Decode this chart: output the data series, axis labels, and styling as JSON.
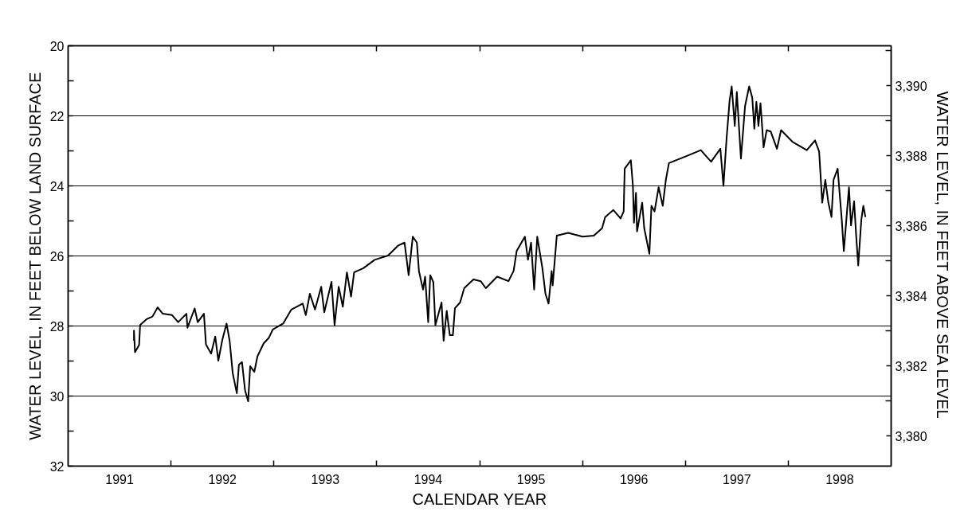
{
  "chart_data": {
    "type": "line",
    "xlabel": "CALENDAR YEAR",
    "ylabel": "WATER LEVEL, IN FEET BELOW LAND SURFACE",
    "y2label": "WATER LEVEL, IN FEET ABOVE SEA LEVEL",
    "xlim": [
      1991,
      1999
    ],
    "xticks": [
      {
        "value": 1991.5,
        "label": "1991"
      },
      {
        "value": 1992,
        "label": null
      },
      {
        "value": 1992.5,
        "label": "1992"
      },
      {
        "value": 1993,
        "label": null
      },
      {
        "value": 1993.5,
        "label": "1993"
      },
      {
        "value": 1994,
        "label": null
      },
      {
        "value": 1994.5,
        "label": "1994"
      },
      {
        "value": 1995,
        "label": null
      },
      {
        "value": 1995.5,
        "label": "1995"
      },
      {
        "value": 1996,
        "label": null
      },
      {
        "value": 1996.5,
        "label": "1996"
      },
      {
        "value": 1997,
        "label": null
      },
      {
        "value": 1997.5,
        "label": "1997"
      },
      {
        "value": 1998,
        "label": null
      },
      {
        "value": 1998.5,
        "label": "1998"
      }
    ],
    "ylim": [
      32,
      20
    ],
    "yticks": [
      20,
      {
        "value": 21,
        "label": null
      },
      22,
      {
        "value": 23,
        "label": null
      },
      24,
      {
        "value": 25,
        "label": null
      },
      26,
      {
        "value": 27,
        "label": null
      },
      28,
      {
        "value": 29,
        "label": null
      },
      30,
      {
        "value": 31,
        "label": null
      },
      32
    ],
    "y2lim": [
      3379.14,
      3391.14
    ],
    "y2ticks": [
      {
        "value": 3380,
        "label": "3,380"
      },
      {
        "value": 3381,
        "label": null
      },
      {
        "value": 3382,
        "label": "3,382"
      },
      {
        "value": 3383,
        "label": null
      },
      {
        "value": 3384,
        "label": "3,384"
      },
      {
        "value": 3385,
        "label": null
      },
      {
        "value": 3386,
        "label": "3,386"
      },
      {
        "value": 3387,
        "label": null
      },
      {
        "value": 3388,
        "label": "3,388"
      },
      {
        "value": 3389,
        "label": null
      },
      {
        "value": 3390,
        "label": "3,390"
      },
      {
        "value": 3391,
        "label": null
      }
    ],
    "grid": "y",
    "line_style": "solid",
    "series": [
      {
        "color": "#000000",
        "x": [
          1991.64,
          1991.64,
          1991.65,
          1991.69,
          1991.7,
          1991.76,
          1991.82,
          1991.87,
          1991.92,
          1992.01,
          1992.07,
          1992.15,
          1992.16,
          1992.23,
          1992.26,
          1992.32,
          1992.34,
          1992.39,
          1992.43,
          1992.46,
          1992.5,
          1992.54,
          1992.57,
          1992.6,
          1992.64,
          1992.66,
          1992.69,
          1992.72,
          1992.75,
          1992.77,
          1992.81,
          1992.84,
          1992.9,
          1992.95,
          1992.99,
          1993.09,
          1993.17,
          1993.28,
          1993.31,
          1993.35,
          1993.4,
          1993.46,
          1993.49,
          1993.56,
          1993.59,
          1993.63,
          1993.67,
          1993.71,
          1993.75,
          1993.78,
          1993.87,
          1993.98,
          1994.11,
          1994.21,
          1994.27,
          1994.31,
          1994.35,
          1994.39,
          1994.41,
          1994.45,
          1994.47,
          1994.5,
          1994.52,
          1994.55,
          1994.57,
          1994.63,
          1994.65,
          1994.68,
          1994.71,
          1994.74,
          1994.76,
          1994.81,
          1994.85,
          1994.94,
          1995.01,
          1995.06,
          1995.17,
          1995.28,
          1995.33,
          1995.36,
          1995.44,
          1995.47,
          1995.5,
          1995.53,
          1995.56,
          1995.61,
          1995.64,
          1995.67,
          1995.7,
          1995.71,
          1995.75,
          1995.86,
          1996.0,
          1996.11,
          1996.19,
          1996.22,
          1996.3,
          1996.37,
          1996.4,
          1996.41,
          1996.47,
          1996.49,
          1996.5,
          1996.52,
          1996.53,
          1996.58,
          1996.6,
          1996.65,
          1996.67,
          1996.7,
          1996.74,
          1996.78,
          1996.81,
          1996.84,
          1997.01,
          1997.15,
          1997.25,
          1997.34,
          1997.37,
          1997.4,
          1997.43,
          1997.45,
          1997.48,
          1997.5,
          1997.54,
          1997.58,
          1997.62,
          1997.65,
          1997.67,
          1997.69,
          1997.71,
          1997.73,
          1997.76,
          1997.79,
          1997.83,
          1997.89,
          1997.93,
          1998.04,
          1998.18,
          1998.26,
          1998.3,
          1998.33,
          1998.36,
          1998.39,
          1998.42,
          1998.44,
          1998.48,
          1998.52,
          1998.54,
          1998.59,
          1998.61,
          1998.64,
          1998.66,
          1998.68,
          1998.71,
          1998.73,
          1998.75
        ],
        "values": [
          28.42,
          28.13,
          28.75,
          28.54,
          27.97,
          27.81,
          27.73,
          27.47,
          27.65,
          27.69,
          27.89,
          27.65,
          28.05,
          27.5,
          27.89,
          27.65,
          28.53,
          28.79,
          28.3,
          28.99,
          28.38,
          27.93,
          28.42,
          29.35,
          29.92,
          29.11,
          29.03,
          29.84,
          30.15,
          29.15,
          29.31,
          28.87,
          28.5,
          28.34,
          28.1,
          27.93,
          27.53,
          27.36,
          27.69,
          27.08,
          27.53,
          26.88,
          27.61,
          26.74,
          27.97,
          26.88,
          27.45,
          26.47,
          27.16,
          26.47,
          26.35,
          26.11,
          25.99,
          25.7,
          25.62,
          26.55,
          25.45,
          25.62,
          26.43,
          26.96,
          26.59,
          27.89,
          26.55,
          26.75,
          27.97,
          27.33,
          28.42,
          27.57,
          28.26,
          28.26,
          27.49,
          27.33,
          26.92,
          26.67,
          26.72,
          26.92,
          26.59,
          26.72,
          26.43,
          25.86,
          25.45,
          26.11,
          25.62,
          26.96,
          25.45,
          26.35,
          27.08,
          27.36,
          26.43,
          26.84,
          25.42,
          25.34,
          25.45,
          25.42,
          25.21,
          24.89,
          24.69,
          24.93,
          24.73,
          23.51,
          23.27,
          24.0,
          25.05,
          24.2,
          25.3,
          24.48,
          25.21,
          25.94,
          24.57,
          24.73,
          24.04,
          24.57,
          23.83,
          23.35,
          23.15,
          22.98,
          23.31,
          22.94,
          24.0,
          22.66,
          21.56,
          21.16,
          22.29,
          21.32,
          23.22,
          21.72,
          21.16,
          21.48,
          22.37,
          21.6,
          22.29,
          21.64,
          22.9,
          22.41,
          22.45,
          22.94,
          22.41,
          22.74,
          22.98,
          22.7,
          23.02,
          24.48,
          23.83,
          24.48,
          24.89,
          23.83,
          23.51,
          24.97,
          25.86,
          24.04,
          25.13,
          24.44,
          25.42,
          26.27,
          24.97,
          24.57,
          24.89
        ]
      }
    ]
  }
}
